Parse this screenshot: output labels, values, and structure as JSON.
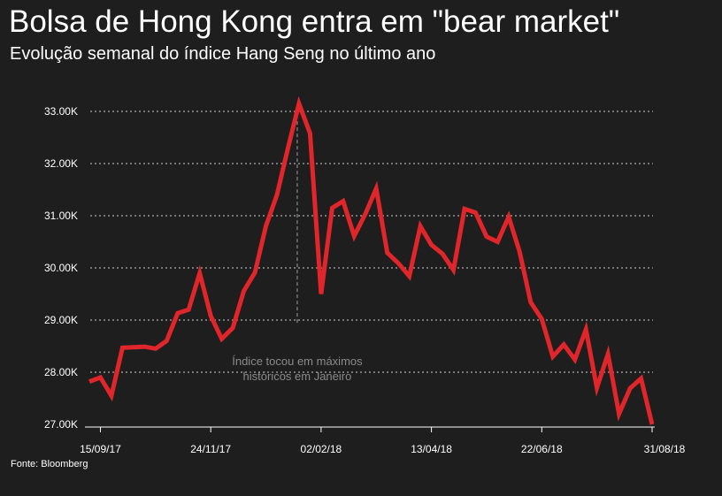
{
  "title": "Bolsa de Hong Kong entra em \"bear market\"",
  "subtitle": "Evolução semanal do índice Hang Seng no último ano",
  "source": "Fonte: Bloomberg",
  "colors": {
    "background": "#1e1e1e",
    "line": "#e0262a",
    "grid": "#cfcfcf",
    "annotation": "#8a8a8a"
  },
  "chart_data": {
    "type": "line",
    "title": "Bolsa de Hong Kong entra em \"bear market\"",
    "subtitle": "Evolução semanal do índice Hang Seng no último ano",
    "xlabel": "",
    "ylabel": "",
    "ylim": [
      27000,
      33000
    ],
    "yticks": [
      27000,
      28000,
      29000,
      30000,
      31000,
      32000,
      33000
    ],
    "ytick_labels": [
      "27.00K",
      "28.00K",
      "29.00K",
      "30.00K",
      "31.00K",
      "32.00K",
      "33.00K"
    ],
    "x_start": "2017-09-08",
    "x_end": "2018-08-31",
    "xtick_dates": [
      "2017-09-15",
      "2017-11-24",
      "2018-02-02",
      "2018-04-13",
      "2018-06-22",
      "2018-08-31"
    ],
    "xtick_labels": [
      "15/09/17",
      "24/11/17",
      "02/02/18",
      "13/04/18",
      "22/06/18",
      "31/08/18"
    ],
    "grid": true,
    "series": [
      {
        "values": [
          [
            "2017-09-08",
            27820
          ],
          [
            "2017-09-15",
            27900
          ],
          [
            "2017-09-22",
            27550
          ],
          [
            "2017-09-29",
            28470
          ],
          [
            "2017-10-06",
            28480
          ],
          [
            "2017-10-13",
            28490
          ],
          [
            "2017-10-20",
            28450
          ],
          [
            "2017-10-27",
            28600
          ],
          [
            "2017-11-03",
            29130
          ],
          [
            "2017-11-10",
            29200
          ],
          [
            "2017-11-17",
            29900
          ],
          [
            "2017-11-24",
            29080
          ],
          [
            "2017-12-01",
            28640
          ],
          [
            "2017-12-08",
            28850
          ],
          [
            "2017-12-15",
            29560
          ],
          [
            "2017-12-22",
            29910
          ],
          [
            "2017-12-29",
            30800
          ],
          [
            "2018-01-05",
            31400
          ],
          [
            "2018-01-12",
            32300
          ],
          [
            "2018-01-19",
            33150
          ],
          [
            "2018-01-26",
            32580
          ],
          [
            "2018-02-02",
            29500
          ],
          [
            "2018-02-09",
            31150
          ],
          [
            "2018-02-16",
            31280
          ],
          [
            "2018-02-23",
            30610
          ],
          [
            "2018-03-02",
            31030
          ],
          [
            "2018-03-09",
            31520
          ],
          [
            "2018-03-16",
            30290
          ],
          [
            "2018-03-23",
            30090
          ],
          [
            "2018-03-30",
            29840
          ],
          [
            "2018-04-06",
            30800
          ],
          [
            "2018-04-13",
            30440
          ],
          [
            "2018-04-20",
            30270
          ],
          [
            "2018-04-27",
            29960
          ],
          [
            "2018-05-04",
            31130
          ],
          [
            "2018-05-11",
            31060
          ],
          [
            "2018-05-18",
            30600
          ],
          [
            "2018-05-25",
            30500
          ],
          [
            "2018-06-01",
            30980
          ],
          [
            "2018-06-08",
            30300
          ],
          [
            "2018-06-15",
            29340
          ],
          [
            "2018-06-22",
            29020
          ],
          [
            "2018-06-29",
            28300
          ],
          [
            "2018-07-06",
            28530
          ],
          [
            "2018-07-13",
            28240
          ],
          [
            "2018-07-20",
            28820
          ],
          [
            "2018-07-27",
            27700
          ],
          [
            "2018-08-03",
            28350
          ],
          [
            "2018-08-10",
            27200
          ],
          [
            "2018-08-17",
            27690
          ],
          [
            "2018-08-24",
            27880
          ],
          [
            "2018-08-31",
            27000
          ]
        ]
      }
    ],
    "annotations": [
      {
        "date": "2018-01-19",
        "value": 33150,
        "lines": [
          "Índice tocou em máximos",
          "históricos em Janeiro"
        ]
      }
    ]
  }
}
